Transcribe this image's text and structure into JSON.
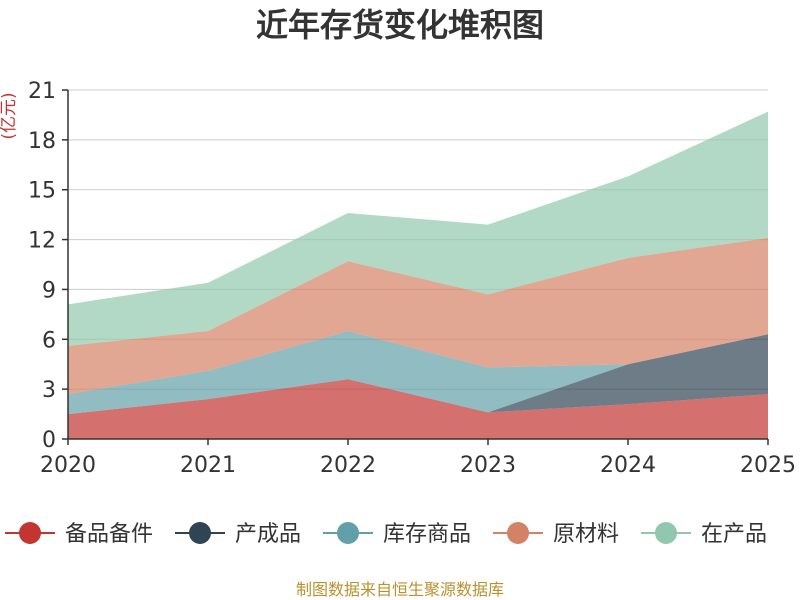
{
  "chart_data": {
    "type": "area",
    "stacked": true,
    "title": "近年存货变化堆积图",
    "ylabel": "(亿元)",
    "xlabel": "",
    "x": [
      "2020",
      "2021",
      "2022",
      "2023",
      "2024",
      "2025"
    ],
    "ylim": [
      0,
      21
    ],
    "yticks": [
      "0",
      "3",
      "6",
      "9",
      "12",
      "15",
      "18",
      "21"
    ],
    "grid": true,
    "legend_position": "bottom",
    "series": [
      {
        "name": "备品备件",
        "color": "#c23531",
        "values": [
          1.5,
          2.4,
          3.6,
          1.6,
          2.1,
          2.7
        ]
      },
      {
        "name": "产成品",
        "color": "#2f4554",
        "values": [
          0.0,
          0.0,
          0.0,
          0.0,
          2.4,
          3.6
        ]
      },
      {
        "name": "库存商品",
        "color": "#61a0a8",
        "values": [
          1.2,
          1.7,
          2.9,
          2.7,
          0.0,
          0.0
        ]
      },
      {
        "name": "原材料",
        "color": "#d48265",
        "values": [
          2.9,
          2.4,
          4.2,
          4.4,
          6.4,
          5.8
        ]
      },
      {
        "name": "在产品",
        "color": "#91c7ae",
        "values": [
          2.5,
          2.9,
          2.9,
          4.2,
          4.9,
          7.6
        ]
      }
    ],
    "source": "制图数据来自恒生聚源数据库"
  }
}
